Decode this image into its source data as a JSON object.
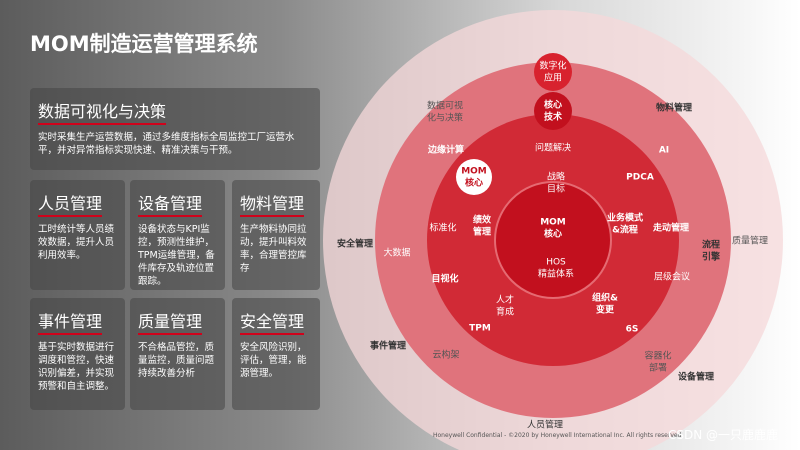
{
  "header": {
    "title": "MOM制造运营管理系统"
  },
  "panels": [
    {
      "title": "数据可视化与决策",
      "text": "实时采集生产运营数据，通过多维度指标全局监控工厂运营水平，并对异常指标实现快速、精准决策与干预。"
    },
    {
      "title": "人员管理",
      "text": "工时统计等人员绩效数据，提升人员利用效率。"
    },
    {
      "title": "设备管理",
      "text": "设备状态与KPI监控，预测性维护，TPM运维管理，备件库存及轨迹位置跟踪。"
    },
    {
      "title": "物料管理",
      "text": "生产物料协同拉动，提升叫料效率，合理管控库存"
    },
    {
      "title": "事件管理",
      "text": "基于实时数据进行调度和管控，快速识别偏差，并实现预警和自主调整。"
    },
    {
      "title": "质量管理",
      "text": "不合格品管控，质量监控，质量问题持续改善分析"
    },
    {
      "title": "安全管理",
      "text": "安全风险识别，评估，管理，能源管理。"
    }
  ],
  "diagram": {
    "labels": [
      {
        "lines": [
          "数字化",
          "应用"
        ]
      },
      {
        "lines": [
          "核心",
          "技术"
        ]
      },
      {
        "lines": [
          "数据可视",
          "化与决策"
        ]
      },
      {
        "lines": [
          "物料管理"
        ]
      },
      {
        "lines": [
          "边缘计算"
        ]
      },
      {
        "lines": [
          "问题解决"
        ]
      },
      {
        "lines": [
          "AI"
        ]
      },
      {
        "lines": [
          "MOM",
          "核心"
        ]
      },
      {
        "lines": [
          "战略",
          "目标"
        ]
      },
      {
        "lines": [
          "PDCA"
        ]
      },
      {
        "lines": [
          "标准化"
        ]
      },
      {
        "lines": [
          "绩效",
          "管理"
        ]
      },
      {
        "lines": [
          "MOM",
          "核心"
        ]
      },
      {
        "lines": [
          "业务模式",
          "&流程"
        ]
      },
      {
        "lines": [
          "走动管理"
        ]
      },
      {
        "lines": [
          "流程",
          "引擎"
        ]
      },
      {
        "lines": [
          "安全管理"
        ]
      },
      {
        "lines": [
          "大数据"
        ]
      },
      {
        "lines": [
          "质量管理"
        ]
      },
      {
        "lines": [
          "HOS",
          "精益体系"
        ]
      },
      {
        "lines": [
          "层级会议"
        ]
      },
      {
        "lines": [
          "目视化"
        ]
      },
      {
        "lines": [
          "人才",
          "育成"
        ]
      },
      {
        "lines": [
          "组织&",
          "变更"
        ]
      },
      {
        "lines": [
          "TPM"
        ]
      },
      {
        "lines": [
          "6S"
        ]
      },
      {
        "lines": [
          "事件管理"
        ]
      },
      {
        "lines": [
          "云构架"
        ]
      },
      {
        "lines": [
          "容器化",
          "部署"
        ]
      },
      {
        "lines": [
          "设备管理"
        ]
      },
      {
        "lines": [
          "人员管理"
        ]
      }
    ]
  },
  "footer": {
    "text": "Honeywell Confidential - ©2020 by Honeywell International Inc. All rights reserved.",
    "watermark": "CSDN @一只鹿鹿鹿"
  }
}
